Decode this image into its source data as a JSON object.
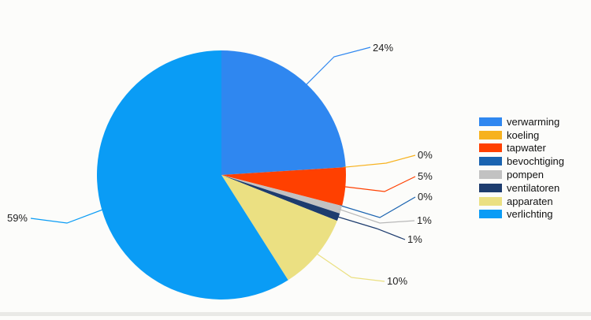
{
  "chart_data": {
    "type": "pie",
    "title": "",
    "slices": [
      {
        "label": "verwarming",
        "value": 24,
        "display": "24%",
        "color": "#2f87f0"
      },
      {
        "label": "koeling",
        "value": 0,
        "display": "0%",
        "color": "#f7b21f"
      },
      {
        "label": "tapwater",
        "value": 5,
        "display": "5%",
        "color": "#ff4000"
      },
      {
        "label": "bevochtiging",
        "value": 0,
        "display": "0%",
        "color": "#1a63b0"
      },
      {
        "label": "pompen",
        "value": 1,
        "display": "1%",
        "color": "#c2c2c2"
      },
      {
        "label": "ventilatoren",
        "value": 1,
        "display": "1%",
        "color": "#1d3c6e"
      },
      {
        "label": "apparaten",
        "value": 10,
        "display": "10%",
        "color": "#ebe082"
      },
      {
        "label": "verlichting",
        "value": 59,
        "display": "59%",
        "color": "#0a9cf5"
      }
    ],
    "legend_position": "right",
    "start_angle_deg": 0,
    "direction": "clockwise"
  }
}
